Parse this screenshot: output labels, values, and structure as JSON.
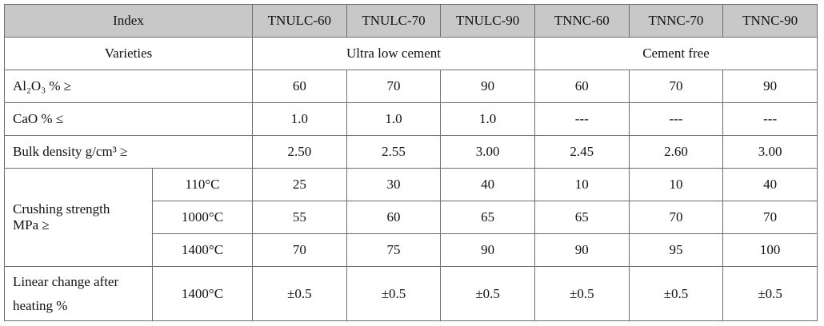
{
  "header": {
    "index": "Index",
    "columns": [
      "TNULC-60",
      "TNULC-70",
      "TNULC-90",
      "TNNC-60",
      "TNNC-70",
      "TNNC-90"
    ]
  },
  "varieties": {
    "label": "Varieties",
    "groups": [
      "Ultra low cement",
      "Cement free"
    ]
  },
  "rows": [
    {
      "label": "Al₂O₃ % ≥",
      "values": [
        "60",
        "70",
        "90",
        "60",
        "70",
        "90"
      ]
    },
    {
      "label": "CaO % ≤",
      "values": [
        "1.0",
        "1.0",
        "1.0",
        "---",
        "---",
        "---"
      ]
    },
    {
      "label": "Bulk density g/cm³ ≥",
      "values": [
        "2.50",
        "2.55",
        "3.00",
        "2.45",
        "2.60",
        "3.00"
      ]
    }
  ],
  "crushing": {
    "label": [
      "Crushing strength",
      "MPa ≥"
    ],
    "sub": [
      {
        "temp": "110°C",
        "values": [
          "25",
          "30",
          "40",
          "10",
          "10",
          "40"
        ]
      },
      {
        "temp": "1000°C",
        "values": [
          "55",
          "60",
          "65",
          "65",
          "70",
          "70"
        ]
      },
      {
        "temp": "1400°C",
        "values": [
          "70",
          "75",
          "90",
          "90",
          "95",
          "100"
        ]
      }
    ]
  },
  "linear": {
    "label": [
      "Linear change after",
      "heating %"
    ],
    "temp": "1400°C",
    "values": [
      "±0.5",
      "±0.5",
      "±0.5",
      "±0.5",
      "±0.5",
      "±0.5"
    ]
  }
}
